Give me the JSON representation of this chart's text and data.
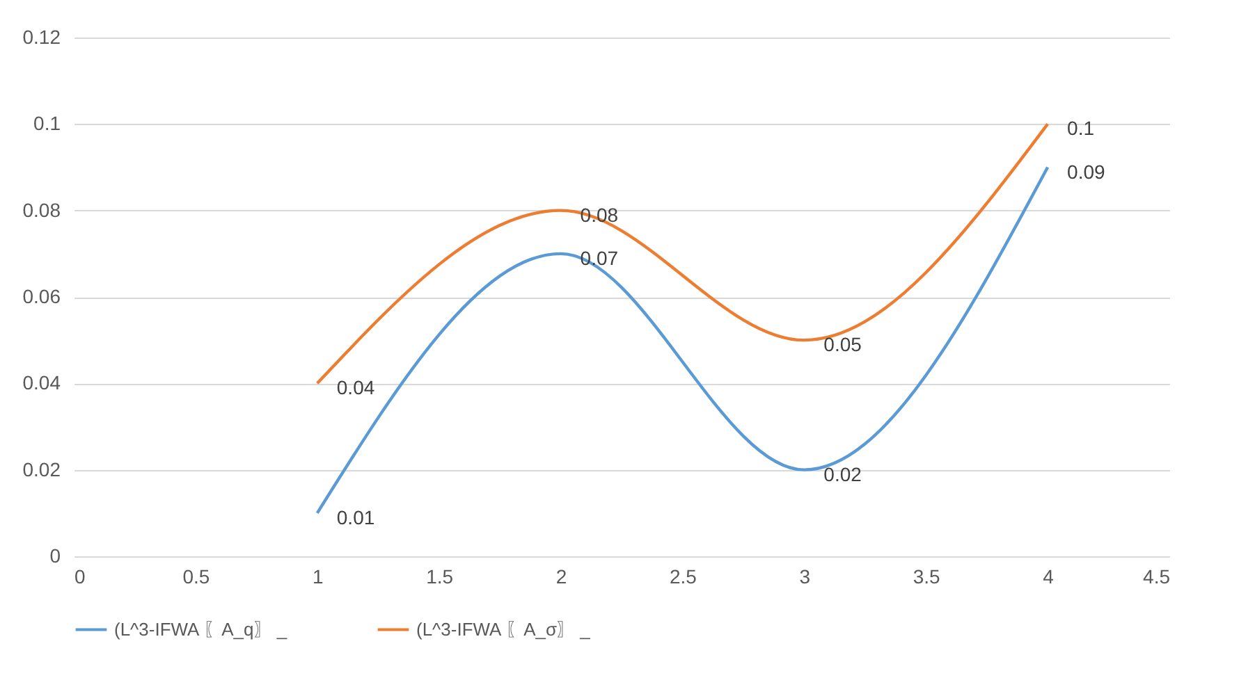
{
  "chart_data": {
    "type": "line",
    "x": [
      1,
      2,
      3,
      4
    ],
    "series": [
      {
        "name": "(L^3-IFWA 〖A_q〗 _",
        "color": "#5b9bd5",
        "values": [
          0.01,
          0.07,
          0.02,
          0.09
        ]
      },
      {
        "name": "(L^3-IFWA 〖A_σ〗 _",
        "color": "#ed7d31",
        "values": [
          0.04,
          0.08,
          0.05,
          0.1
        ]
      }
    ],
    "xlim": [
      0,
      4.5
    ],
    "xticks": [
      0,
      0.5,
      1,
      1.5,
      2,
      2.5,
      3,
      3.5,
      4,
      4.5
    ],
    "ylim": [
      0,
      0.12
    ],
    "yticks": [
      0,
      0.02,
      0.04,
      0.06,
      0.08,
      0.1,
      0.12
    ],
    "grid": "y",
    "legend": "bottom",
    "data_labels": true,
    "marker": "none",
    "line_style": "solid"
  }
}
